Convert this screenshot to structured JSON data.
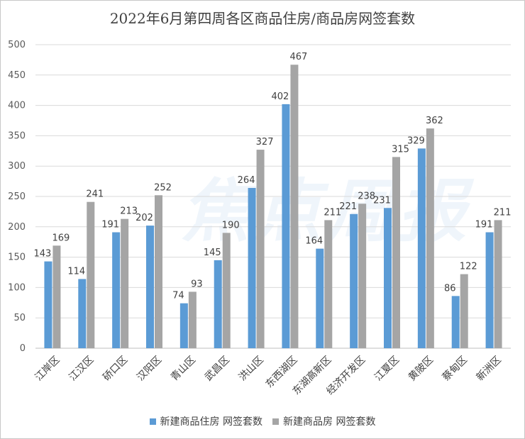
{
  "chart_data": {
    "type": "bar",
    "title": "2022年6月第四周各区商品住房/商品房网签套数",
    "xlabel": "",
    "ylabel": "",
    "ylim": [
      0,
      500
    ],
    "yticks": [
      0,
      50,
      100,
      150,
      200,
      250,
      300,
      350,
      400,
      450,
      500
    ],
    "grid": true,
    "legend_position": "bottom",
    "categories": [
      "江岸区",
      "江汉区",
      "硚口区",
      "汉阳区",
      "青山区",
      "武昌区",
      "洪山区",
      "东西湖区",
      "东湖高新区",
      "经济开发区",
      "江夏区",
      "黄陂区",
      "蔡甸区",
      "新洲区"
    ],
    "series": [
      {
        "name": "新建商品住房 网签套数",
        "color": "#5b9bd5",
        "values": [
          143,
          114,
          191,
          202,
          74,
          145,
          264,
          402,
          164,
          221,
          231,
          329,
          86,
          191
        ]
      },
      {
        "name": "新建商品房 网签套数",
        "color": "#a5a5a5",
        "values": [
          169,
          241,
          213,
          252,
          93,
          190,
          327,
          467,
          211,
          238,
          315,
          362,
          122,
          211
        ]
      }
    ]
  },
  "watermark_text": "焦点周报"
}
